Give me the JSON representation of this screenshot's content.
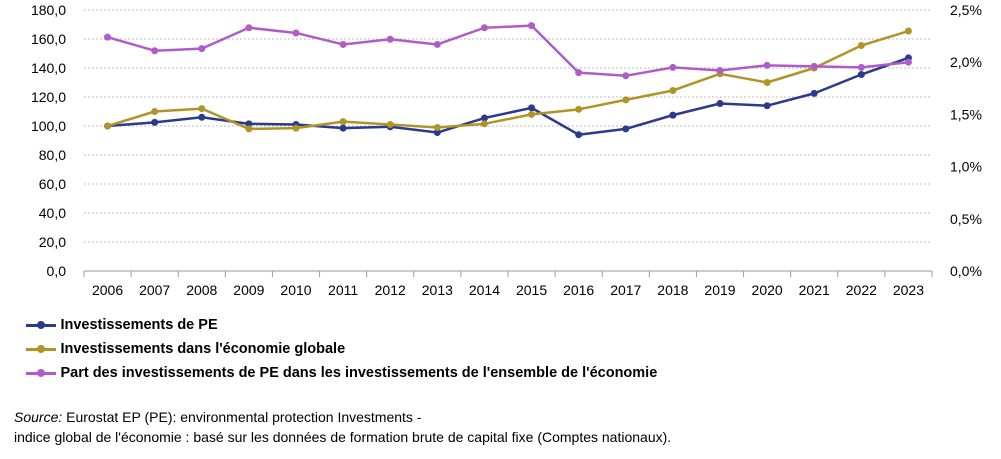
{
  "chart_data": {
    "type": "line",
    "title": "",
    "xlabel": "",
    "ylabel": "",
    "categories": [
      "2006",
      "2007",
      "2008",
      "2009",
      "2010",
      "2011",
      "2012",
      "2013",
      "2014",
      "2015",
      "2016",
      "2017",
      "2018",
      "2019",
      "2020",
      "2021",
      "2022",
      "2023"
    ],
    "y_left": {
      "ylim": [
        0,
        180
      ],
      "ticks": [
        "0,0",
        "20,0",
        "40,0",
        "60,0",
        "80,0",
        "100,0",
        "120,0",
        "140,0",
        "160,0",
        "180,0"
      ]
    },
    "y_right": {
      "ylim": [
        0,
        2.5
      ],
      "ticks": [
        "0,0%",
        "0,5%",
        "1,0%",
        "1,5%",
        "2,0%",
        "2,5%"
      ]
    },
    "grid": true,
    "legend_position": "bottom-left",
    "series": [
      {
        "name": "Investissements de PE",
        "axis": "left",
        "color": "#2a3a8c",
        "values": [
          100.0,
          102.5,
          106.0,
          101.5,
          101.0,
          98.5,
          99.5,
          95.5,
          105.5,
          112.5,
          94.0,
          98.0,
          107.5,
          115.5,
          114.0,
          122.5,
          135.5,
          147.0
        ]
      },
      {
        "name": "Investissements dans l'économie globale",
        "axis": "left",
        "color": "#b09428",
        "values": [
          100.0,
          110.0,
          112.0,
          98.0,
          98.5,
          103.0,
          101.0,
          99.0,
          101.5,
          108.0,
          111.5,
          118.0,
          124.5,
          136.0,
          130.0,
          140.0,
          155.5,
          165.5
        ]
      },
      {
        "name": "Part des investissements de PE dans les investissements de l'ensemble de l'économie",
        "axis": "right",
        "color": "#b05cc8",
        "values": [
          2.24,
          2.11,
          2.13,
          2.33,
          2.28,
          2.17,
          2.22,
          2.17,
          2.33,
          2.35,
          1.9,
          1.87,
          1.95,
          1.92,
          1.97,
          1.96,
          1.95,
          2.0
        ]
      }
    ]
  },
  "source": {
    "label": "Source:",
    "line1": "Eurostat EP (PE): environmental protection  Investments -",
    "line2": "indice global de l'économie : basé sur les données de formation brute de capital fixe (Comptes nationaux)."
  }
}
